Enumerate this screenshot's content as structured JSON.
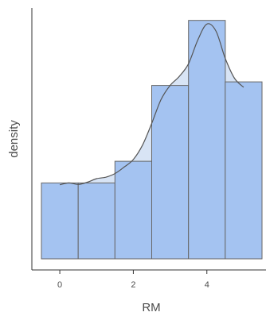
{
  "chart_data": {
    "type": "histogram",
    "xlabel": "RM",
    "ylabel": "density",
    "xlim": [
      -0.5,
      5.5
    ],
    "x_ticks": [
      0,
      2,
      4
    ],
    "x_tick_labels": [
      "0",
      "2",
      "4"
    ],
    "y_ticks_shown": false,
    "grid": false,
    "legend": "none",
    "bins": [
      {
        "x0": -0.5,
        "x1": 0.5,
        "density": 0.21
      },
      {
        "x0": 0.5,
        "x1": 1.5,
        "density": 0.21
      },
      {
        "x0": 1.5,
        "x1": 2.5,
        "density": 0.27
      },
      {
        "x0": 2.5,
        "x1": 3.5,
        "density": 0.48
      },
      {
        "x0": 3.5,
        "x1": 4.5,
        "density": 0.66
      },
      {
        "x0": 4.5,
        "x1": 5.5,
        "density": 0.49
      }
    ],
    "density_curve": {
      "x": [
        0.0,
        0.25,
        0.5,
        0.75,
        1.0,
        1.25,
        1.5,
        1.75,
        2.0,
        2.25,
        2.5,
        2.75,
        3.0,
        3.25,
        3.5,
        3.75,
        4.0,
        4.25,
        4.5,
        4.75,
        5.0
      ],
      "y": [
        0.205,
        0.21,
        0.206,
        0.212,
        0.222,
        0.226,
        0.236,
        0.254,
        0.275,
        0.315,
        0.375,
        0.44,
        0.48,
        0.505,
        0.54,
        0.605,
        0.65,
        0.63,
        0.555,
        0.5,
        0.475
      ]
    },
    "colors": {
      "bar_fill": "#a4c3f1",
      "bar_stroke": "#666666",
      "curve_fill": "#d8e4f5",
      "curve_stroke": "#555555",
      "axis": "#333333"
    }
  }
}
